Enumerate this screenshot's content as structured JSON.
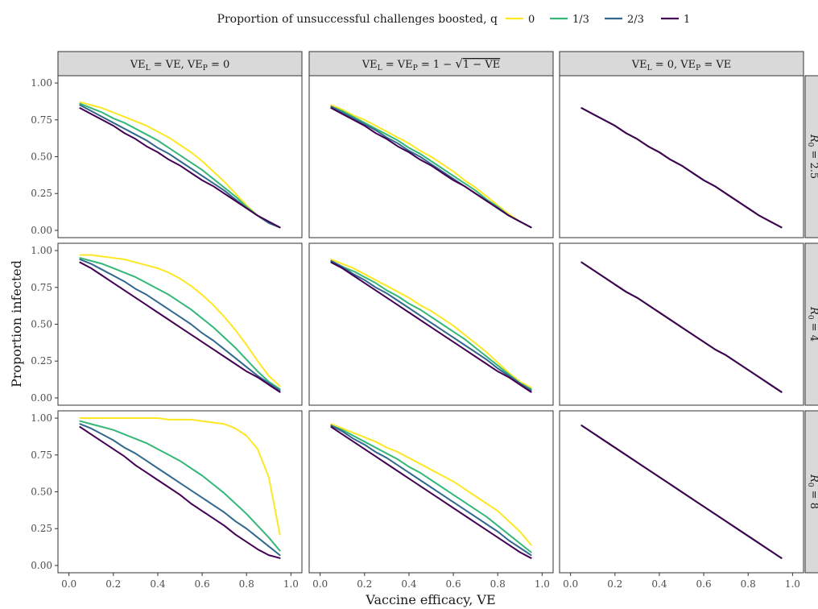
{
  "legend": {
    "title": "Proportion of unsuccessful challenges boosted, q",
    "entries": [
      {
        "label": "0",
        "color": "#fde725"
      },
      {
        "label": "1/3",
        "color": "#35b779"
      },
      {
        "label": "2/3",
        "color": "#31688e"
      },
      {
        "label": "1",
        "color": "#440154"
      }
    ],
    "position": "top"
  },
  "chart_data": {
    "type": "line",
    "facet_layout": "grid",
    "xlabel": "Vaccine efficacy, VE",
    "ylabel": "Proportion infected",
    "xlim": [
      0,
      1.0
    ],
    "ylim": [
      0,
      1.0
    ],
    "x_ticks": [
      "0.0",
      "0.2",
      "0.4",
      "0.6",
      "0.8",
      "1.0"
    ],
    "y_ticks": [
      "0.00",
      "0.25",
      "0.50",
      "0.75",
      "1.00"
    ],
    "grid": false,
    "columns": [
      "VE_L = VE, VE_P = 0",
      "VE_L = VE_P = 1 − √(1 − VE)",
      "VE_L = 0, VE_P = VE"
    ],
    "rows": [
      "R0 = 2.5",
      "R0 = 4",
      "R0 = 8"
    ],
    "x": [
      0.05,
      0.1,
      0.15,
      0.2,
      0.25,
      0.3,
      0.35,
      0.4,
      0.45,
      0.5,
      0.55,
      0.6,
      0.65,
      0.7,
      0.75,
      0.8,
      0.85,
      0.9,
      0.95
    ],
    "panels": [
      {
        "row": "R0 = 2.5",
        "col": "VE_L = VE, VE_P = 0",
        "series": [
          {
            "name": "0",
            "values": [
              0.87,
              0.85,
              0.83,
              0.8,
              0.77,
              0.74,
              0.71,
              0.67,
              0.63,
              0.58,
              0.53,
              0.47,
              0.4,
              0.33,
              0.25,
              0.17,
              0.1,
              0.05,
              0.02
            ]
          },
          {
            "name": "1/3",
            "values": [
              0.86,
              0.83,
              0.8,
              0.76,
              0.73,
              0.69,
              0.65,
              0.61,
              0.56,
              0.51,
              0.46,
              0.41,
              0.35,
              0.29,
              0.23,
              0.16,
              0.1,
              0.05,
              0.02
            ]
          },
          {
            "name": "2/3",
            "values": [
              0.85,
              0.81,
              0.77,
              0.73,
              0.69,
              0.65,
              0.61,
              0.56,
              0.52,
              0.47,
              0.42,
              0.37,
              0.32,
              0.27,
              0.21,
              0.15,
              0.1,
              0.05,
              0.02
            ]
          },
          {
            "name": "1",
            "values": [
              0.83,
              0.79,
              0.75,
              0.71,
              0.66,
              0.62,
              0.57,
              0.53,
              0.48,
              0.44,
              0.39,
              0.34,
              0.3,
              0.25,
              0.2,
              0.15,
              0.1,
              0.06,
              0.02
            ]
          }
        ]
      },
      {
        "row": "R0 = 2.5",
        "col": "VE_L = VE_P = 1 − √(1 − VE)",
        "series": [
          {
            "name": "0",
            "values": [
              0.85,
              0.82,
              0.78,
              0.75,
              0.71,
              0.67,
              0.63,
              0.59,
              0.54,
              0.5,
              0.45,
              0.4,
              0.34,
              0.29,
              0.23,
              0.17,
              0.11,
              0.06,
              0.02
            ]
          },
          {
            "name": "1/3",
            "values": [
              0.84,
              0.81,
              0.77,
              0.73,
              0.69,
              0.65,
              0.61,
              0.56,
              0.52,
              0.47,
              0.42,
              0.37,
              0.32,
              0.27,
              0.21,
              0.16,
              0.1,
              0.06,
              0.02
            ]
          },
          {
            "name": "2/3",
            "values": [
              0.84,
              0.8,
              0.76,
              0.72,
              0.68,
              0.63,
              0.59,
              0.54,
              0.5,
              0.45,
              0.4,
              0.35,
              0.3,
              0.25,
              0.2,
              0.15,
              0.1,
              0.06,
              0.02
            ]
          },
          {
            "name": "1",
            "values": [
              0.83,
              0.79,
              0.75,
              0.71,
              0.66,
              0.62,
              0.57,
              0.53,
              0.48,
              0.44,
              0.39,
              0.34,
              0.3,
              0.25,
              0.2,
              0.15,
              0.1,
              0.06,
              0.02
            ]
          }
        ]
      },
      {
        "row": "R0 = 2.5",
        "col": "VE_L = 0, VE_P = VE",
        "series": [
          {
            "name": "0",
            "values": [
              0.83,
              0.79,
              0.75,
              0.71,
              0.66,
              0.62,
              0.57,
              0.53,
              0.48,
              0.44,
              0.39,
              0.34,
              0.3,
              0.25,
              0.2,
              0.15,
              0.1,
              0.06,
              0.02
            ]
          },
          {
            "name": "1/3",
            "values": [
              0.83,
              0.79,
              0.75,
              0.71,
              0.66,
              0.62,
              0.57,
              0.53,
              0.48,
              0.44,
              0.39,
              0.34,
              0.3,
              0.25,
              0.2,
              0.15,
              0.1,
              0.06,
              0.02
            ]
          },
          {
            "name": "2/3",
            "values": [
              0.83,
              0.79,
              0.75,
              0.71,
              0.66,
              0.62,
              0.57,
              0.53,
              0.48,
              0.44,
              0.39,
              0.34,
              0.3,
              0.25,
              0.2,
              0.15,
              0.1,
              0.06,
              0.02
            ]
          },
          {
            "name": "1",
            "values": [
              0.83,
              0.79,
              0.75,
              0.71,
              0.66,
              0.62,
              0.57,
              0.53,
              0.48,
              0.44,
              0.39,
              0.34,
              0.3,
              0.25,
              0.2,
              0.15,
              0.1,
              0.06,
              0.02
            ]
          }
        ]
      },
      {
        "row": "R0 = 4",
        "col": "VE_L = VE, VE_P = 0",
        "series": [
          {
            "name": "0",
            "values": [
              0.97,
              0.97,
              0.96,
              0.95,
              0.94,
              0.92,
              0.9,
              0.88,
              0.85,
              0.81,
              0.76,
              0.7,
              0.63,
              0.55,
              0.46,
              0.36,
              0.25,
              0.15,
              0.08
            ]
          },
          {
            "name": "1/3",
            "values": [
              0.95,
              0.93,
              0.91,
              0.88,
              0.85,
              0.82,
              0.78,
              0.74,
              0.7,
              0.65,
              0.6,
              0.54,
              0.48,
              0.41,
              0.34,
              0.26,
              0.18,
              0.11,
              0.06
            ]
          },
          {
            "name": "2/3",
            "values": [
              0.94,
              0.91,
              0.87,
              0.83,
              0.79,
              0.74,
              0.7,
              0.65,
              0.6,
              0.55,
              0.5,
              0.44,
              0.39,
              0.33,
              0.27,
              0.21,
              0.15,
              0.1,
              0.05
            ]
          },
          {
            "name": "1",
            "values": [
              0.92,
              0.88,
              0.83,
              0.78,
              0.73,
              0.68,
              0.63,
              0.58,
              0.53,
              0.48,
              0.43,
              0.38,
              0.33,
              0.28,
              0.23,
              0.18,
              0.14,
              0.09,
              0.04
            ]
          }
        ]
      },
      {
        "row": "R0 = 4",
        "col": "VE_L = VE_P = 1 − √(1 − VE)",
        "series": [
          {
            "name": "0",
            "values": [
              0.94,
              0.91,
              0.88,
              0.84,
              0.8,
              0.76,
              0.72,
              0.68,
              0.63,
              0.59,
              0.54,
              0.49,
              0.43,
              0.37,
              0.31,
              0.24,
              0.17,
              0.11,
              0.07
            ]
          },
          {
            "name": "1/3",
            "values": [
              0.93,
              0.89,
              0.86,
              0.82,
              0.78,
              0.73,
              0.69,
              0.64,
              0.6,
              0.55,
              0.5,
              0.45,
              0.4,
              0.34,
              0.28,
              0.22,
              0.16,
              0.1,
              0.06
            ]
          },
          {
            "name": "2/3",
            "values": [
              0.93,
              0.89,
              0.84,
              0.8,
              0.75,
              0.71,
              0.66,
              0.61,
              0.56,
              0.51,
              0.46,
              0.41,
              0.36,
              0.31,
              0.26,
              0.2,
              0.15,
              0.1,
              0.05
            ]
          },
          {
            "name": "1",
            "values": [
              0.92,
              0.88,
              0.83,
              0.78,
              0.73,
              0.68,
              0.63,
              0.58,
              0.53,
              0.48,
              0.43,
              0.38,
              0.33,
              0.28,
              0.23,
              0.18,
              0.14,
              0.09,
              0.04
            ]
          }
        ]
      },
      {
        "row": "R0 = 4",
        "col": "VE_L = 0, VE_P = VE",
        "series": [
          {
            "name": "0",
            "values": [
              0.92,
              0.87,
              0.82,
              0.77,
              0.72,
              0.68,
              0.63,
              0.58,
              0.53,
              0.48,
              0.43,
              0.38,
              0.33,
              0.29,
              0.24,
              0.19,
              0.14,
              0.09,
              0.04
            ]
          },
          {
            "name": "1/3",
            "values": [
              0.92,
              0.87,
              0.82,
              0.77,
              0.72,
              0.68,
              0.63,
              0.58,
              0.53,
              0.48,
              0.43,
              0.38,
              0.33,
              0.29,
              0.24,
              0.19,
              0.14,
              0.09,
              0.04
            ]
          },
          {
            "name": "2/3",
            "values": [
              0.92,
              0.87,
              0.82,
              0.77,
              0.72,
              0.68,
              0.63,
              0.58,
              0.53,
              0.48,
              0.43,
              0.38,
              0.33,
              0.29,
              0.24,
              0.19,
              0.14,
              0.09,
              0.04
            ]
          },
          {
            "name": "1",
            "values": [
              0.92,
              0.87,
              0.82,
              0.77,
              0.72,
              0.68,
              0.63,
              0.58,
              0.53,
              0.48,
              0.43,
              0.38,
              0.33,
              0.29,
              0.24,
              0.19,
              0.14,
              0.09,
              0.04
            ]
          }
        ]
      },
      {
        "row": "R0 = 8",
        "col": "VE_L = VE, VE_P = 0",
        "series": [
          {
            "name": "0",
            "values": [
              1.0,
              1.0,
              1.0,
              1.0,
              1.0,
              1.0,
              1.0,
              1.0,
              0.99,
              0.99,
              0.99,
              0.98,
              0.97,
              0.96,
              0.93,
              0.88,
              0.79,
              0.6,
              0.21
            ]
          },
          {
            "name": "1/3",
            "values": [
              0.98,
              0.96,
              0.94,
              0.92,
              0.89,
              0.86,
              0.83,
              0.79,
              0.75,
              0.71,
              0.66,
              0.61,
              0.55,
              0.49,
              0.42,
              0.35,
              0.27,
              0.19,
              0.1
            ]
          },
          {
            "name": "2/3",
            "values": [
              0.96,
              0.93,
              0.89,
              0.85,
              0.8,
              0.76,
              0.71,
              0.66,
              0.61,
              0.56,
              0.51,
              0.46,
              0.41,
              0.36,
              0.3,
              0.25,
              0.19,
              0.13,
              0.07
            ]
          },
          {
            "name": "1",
            "values": [
              0.94,
              0.89,
              0.84,
              0.79,
              0.74,
              0.68,
              0.63,
              0.58,
              0.53,
              0.48,
              0.42,
              0.37,
              0.32,
              0.27,
              0.21,
              0.16,
              0.11,
              0.07,
              0.05
            ]
          }
        ]
      },
      {
        "row": "R0 = 8",
        "col": "VE_L = VE_P = 1 − √(1 − VE)",
        "series": [
          {
            "name": "0",
            "values": [
              0.96,
              0.93,
              0.9,
              0.87,
              0.84,
              0.8,
              0.77,
              0.73,
              0.69,
              0.65,
              0.61,
              0.57,
              0.52,
              0.47,
              0.42,
              0.37,
              0.3,
              0.23,
              0.14
            ]
          },
          {
            "name": "1/3",
            "values": [
              0.95,
              0.92,
              0.88,
              0.84,
              0.8,
              0.76,
              0.72,
              0.67,
              0.63,
              0.58,
              0.53,
              0.48,
              0.43,
              0.38,
              0.33,
              0.27,
              0.21,
              0.15,
              0.09
            ]
          },
          {
            "name": "2/3",
            "values": [
              0.95,
              0.91,
              0.86,
              0.82,
              0.77,
              0.73,
              0.68,
              0.63,
              0.58,
              0.53,
              0.48,
              0.43,
              0.38,
              0.33,
              0.28,
              0.23,
              0.17,
              0.12,
              0.07
            ]
          },
          {
            "name": "1",
            "values": [
              0.94,
              0.89,
              0.84,
              0.79,
              0.74,
              0.69,
              0.64,
              0.59,
              0.54,
              0.49,
              0.44,
              0.39,
              0.34,
              0.29,
              0.24,
              0.19,
              0.14,
              0.09,
              0.05
            ]
          }
        ]
      },
      {
        "row": "R0 = 8",
        "col": "VE_L = 0, VE_P = VE",
        "series": [
          {
            "name": "0",
            "values": [
              0.95,
              0.9,
              0.85,
              0.8,
              0.75,
              0.7,
              0.65,
              0.6,
              0.55,
              0.5,
              0.45,
              0.4,
              0.35,
              0.3,
              0.25,
              0.2,
              0.15,
              0.1,
              0.05
            ]
          },
          {
            "name": "1/3",
            "values": [
              0.95,
              0.9,
              0.85,
              0.8,
              0.75,
              0.7,
              0.65,
              0.6,
              0.55,
              0.5,
              0.45,
              0.4,
              0.35,
              0.3,
              0.25,
              0.2,
              0.15,
              0.1,
              0.05
            ]
          },
          {
            "name": "2/3",
            "values": [
              0.95,
              0.9,
              0.85,
              0.8,
              0.75,
              0.7,
              0.65,
              0.6,
              0.55,
              0.5,
              0.45,
              0.4,
              0.35,
              0.3,
              0.25,
              0.2,
              0.15,
              0.1,
              0.05
            ]
          },
          {
            "name": "1",
            "values": [
              0.95,
              0.9,
              0.85,
              0.8,
              0.75,
              0.7,
              0.65,
              0.6,
              0.55,
              0.5,
              0.45,
              0.4,
              0.35,
              0.3,
              0.25,
              0.2,
              0.15,
              0.1,
              0.05
            ]
          }
        ]
      }
    ]
  }
}
